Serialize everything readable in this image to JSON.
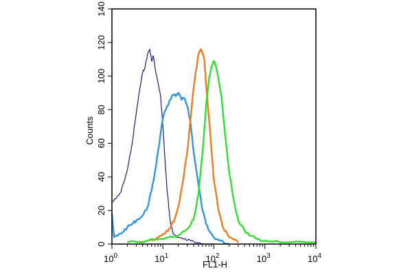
{
  "chart_data": {
    "type": "line",
    "title": "",
    "xlabel": "FL1-H",
    "ylabel": "Counts",
    "x_scale": "log",
    "xlim": [
      1,
      10000
    ],
    "ylim": [
      0,
      140
    ],
    "grid": false,
    "legend": "none",
    "x_ticks": [
      {
        "value": 1,
        "base": "10",
        "exp": "0"
      },
      {
        "value": 10,
        "base": "10",
        "exp": "1"
      },
      {
        "value": 100,
        "base": "10",
        "exp": "2"
      },
      {
        "value": 1000,
        "base": "10",
        "exp": "3"
      },
      {
        "value": 10000,
        "base": "10",
        "exp": "4"
      }
    ],
    "y_ticks": [
      "0",
      "20",
      "40",
      "60",
      "80",
      "100",
      "120",
      "140"
    ],
    "series": [
      {
        "color": "#1a1a7a",
        "x": [
          1,
          1.2,
          1.5,
          2,
          2.5,
          3,
          3.5,
          4,
          4.5,
          5,
          5.5,
          6,
          6.5,
          7,
          8,
          9,
          10,
          11,
          12,
          13,
          14,
          16,
          20,
          25,
          35,
          50,
          100
        ],
        "y": [
          25,
          27,
          31,
          44,
          60,
          78,
          92,
          102,
          106,
          113,
          116,
          109,
          112,
          105,
          96,
          88,
          70,
          50,
          33,
          22,
          13,
          6,
          4,
          3,
          2,
          1,
          0
        ]
      },
      {
        "color": "#2e96e0",
        "x": [
          1,
          1.1,
          1.3,
          1.6,
          2,
          2.5,
          3,
          4,
          5,
          6,
          7,
          8,
          10,
          12,
          14,
          16,
          18,
          20,
          23,
          26,
          30,
          35,
          40,
          50,
          60,
          70,
          80,
          100,
          130,
          200
        ],
        "y": [
          18,
          4,
          5,
          7,
          10,
          12,
          14,
          17,
          22,
          32,
          43,
          55,
          75,
          82,
          86,
          89,
          88,
          90,
          86,
          87,
          82,
          72,
          55,
          35,
          20,
          12,
          8,
          4,
          2,
          0
        ]
      },
      {
        "color": "#f07a20",
        "x": [
          3,
          5,
          8,
          10,
          12,
          14,
          17,
          20,
          23,
          26,
          30,
          35,
          40,
          45,
          50,
          55,
          60,
          65,
          70,
          80,
          90,
          100,
          120,
          150,
          200,
          300
        ],
        "y": [
          1,
          2,
          4,
          6,
          8,
          10,
          15,
          22,
          32,
          42,
          55,
          75,
          93,
          104,
          113,
          116,
          114,
          110,
          95,
          75,
          55,
          38,
          22,
          10,
          4,
          1
        ]
      },
      {
        "color": "#2ee02e",
        "x": [
          2,
          5,
          10,
          20,
          30,
          40,
          50,
          60,
          70,
          80,
          90,
          100,
          110,
          120,
          140,
          160,
          180,
          200,
          250,
          300,
          400,
          500,
          700,
          1000,
          2000,
          10000
        ],
        "y": [
          1,
          2,
          3,
          5,
          9,
          15,
          30,
          55,
          82,
          98,
          106,
          109,
          106,
          100,
          88,
          70,
          55,
          42,
          25,
          14,
          8,
          5,
          3,
          2,
          1,
          1
        ]
      }
    ]
  }
}
